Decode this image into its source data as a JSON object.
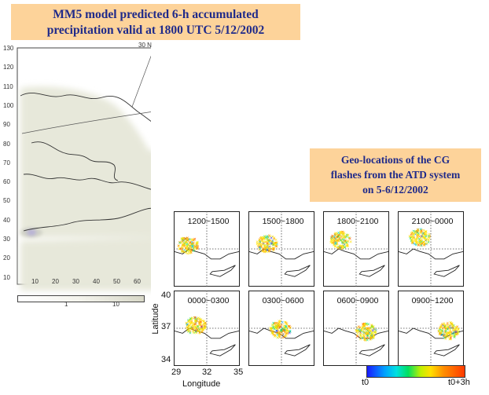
{
  "titles": {
    "mm5": [
      "MM5 model predicted 6-h accumulated",
      "precipitation valid at 1800 UTC 5/12/2002"
    ],
    "atd": [
      "Geo-locations of the CG",
      "flashes from the ATD system",
      "on 5-6/12/2002"
    ]
  },
  "mm5_map": {
    "top_label": "30 N",
    "y_ticks": [
      "130",
      "120",
      "110",
      "100",
      "90",
      "80",
      "70",
      "60",
      "50",
      "40",
      "30",
      "20",
      "10"
    ],
    "x_ticks": [
      "10",
      "20",
      "30",
      "40",
      "50",
      "60"
    ],
    "colorbar_ticks": [
      "1",
      "10"
    ]
  },
  "panels": [
    "1200~1500",
    "1500~1800",
    "1800~2100",
    "2100~0000",
    "0000~0300",
    "0300~0600",
    "0600~0900",
    "0900~1200"
  ],
  "axes": {
    "ylabel": "Latitude",
    "xlabel": "Longitude",
    "y_ticks": [
      "40",
      "37",
      "34"
    ],
    "x_ticks": [
      "29",
      "32",
      "35"
    ]
  },
  "colorbar": {
    "left": "t0",
    "right": "t0+3h"
  },
  "chart_data": {
    "type": "scatter",
    "xlabel": "Longitude",
    "ylabel": "Latitude",
    "xlim": [
      29,
      35
    ],
    "ylim": [
      34,
      40
    ],
    "panels": [
      {
        "time": "1200~1500",
        "center": [
          30.3,
          37.2
        ]
      },
      {
        "time": "1500~1800",
        "center": [
          30.7,
          37.3
        ]
      },
      {
        "time": "1800~2100",
        "center": [
          30.6,
          37.6
        ]
      },
      {
        "time": "2100~0000",
        "center": [
          31.0,
          37.8
        ]
      },
      {
        "time": "0000~0300",
        "center": [
          31.0,
          37.1
        ]
      },
      {
        "time": "0300~0600",
        "center": [
          31.9,
          36.8
        ]
      },
      {
        "time": "0600~0900",
        "center": [
          32.9,
          36.6
        ]
      },
      {
        "time": "0900~1200",
        "center": [
          33.6,
          36.7
        ]
      }
    ]
  }
}
